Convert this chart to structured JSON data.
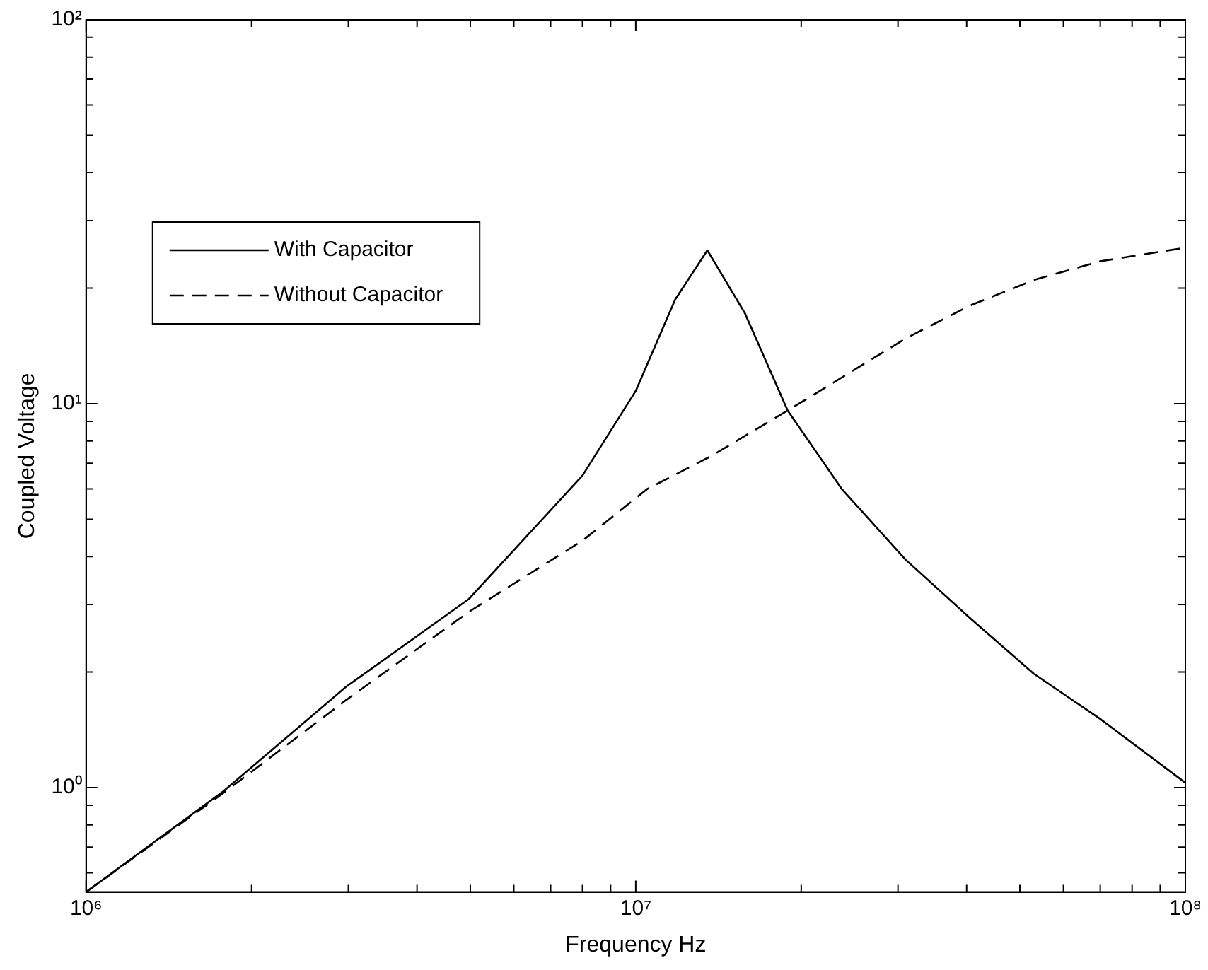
{
  "chart_data": {
    "type": "line",
    "xlabel": "Frequency Hz",
    "ylabel": "Coupled Voltage",
    "log": "xy",
    "grid": false,
    "legend": "top left",
    "marker": "none",
    "xlim": [
      1000000,
      100000000
    ],
    "xticks": [
      {
        "value": 1000000,
        "label": "10⁶"
      },
      {
        "value": 2000000,
        "label": null
      },
      {
        "value": 3000000,
        "label": null
      },
      {
        "value": 4000000,
        "label": null
      },
      {
        "value": 5000000,
        "label": null
      },
      {
        "value": 6000000,
        "label": null
      },
      {
        "value": 7000000,
        "label": null
      },
      {
        "value": 8000000,
        "label": null
      },
      {
        "value": 9000000,
        "label": null
      },
      {
        "value": 10000000,
        "label": "10⁷"
      },
      {
        "value": 20000000,
        "label": null
      },
      {
        "value": 30000000,
        "label": null
      },
      {
        "value": 40000000,
        "label": null
      },
      {
        "value": 50000000,
        "label": null
      },
      {
        "value": 60000000,
        "label": null
      },
      {
        "value": 70000000,
        "label": null
      },
      {
        "value": 80000000,
        "label": null
      },
      {
        "value": 90000000,
        "label": null
      },
      {
        "value": 100000000,
        "label": "10⁸"
      }
    ],
    "ylim": [
      0.535,
      100
    ],
    "yticks": [
      {
        "value": 0.6,
        "label": null
      },
      {
        "value": 0.7,
        "label": null
      },
      {
        "value": 0.8,
        "label": null
      },
      {
        "value": 0.9,
        "label": null
      },
      {
        "value": 1,
        "label": "10⁰"
      },
      {
        "value": 2,
        "label": null
      },
      {
        "value": 3,
        "label": null
      },
      {
        "value": 4,
        "label": null
      },
      {
        "value": 5,
        "label": null
      },
      {
        "value": 6,
        "label": null
      },
      {
        "value": 7,
        "label": null
      },
      {
        "value": 8,
        "label": null
      },
      {
        "value": 9,
        "label": null
      },
      {
        "value": 10,
        "label": "10¹"
      },
      {
        "value": 20,
        "label": null
      },
      {
        "value": 30,
        "label": null
      },
      {
        "value": 40,
        "label": null
      },
      {
        "value": 50,
        "label": null
      },
      {
        "value": 60,
        "label": null
      },
      {
        "value": 70,
        "label": null
      },
      {
        "value": 80,
        "label": null
      },
      {
        "value": 90,
        "label": null
      },
      {
        "value": 100,
        "label": "10²"
      }
    ],
    "series": [
      {
        "name": "With Capacitor",
        "color": "#000000",
        "line_style": "solid",
        "x": [
          1000000,
          1780000,
          2970000,
          4970000,
          8000000,
          10000000,
          11800000,
          13500000,
          15800000,
          18900000,
          23700000,
          31000000,
          40500000,
          53000000,
          70000000,
          100000000
        ],
        "values": [
          0.535,
          0.98,
          1.83,
          3.1,
          6.5,
          10.8,
          18.7,
          25.1,
          17.2,
          9.6,
          6.0,
          3.92,
          2.77,
          1.98,
          1.51,
          1.03
        ]
      },
      {
        "name": "Without Capacitor",
        "color": "#000000",
        "line_style": "dashed",
        "x": [
          1000000,
          1780000,
          2970000,
          4970000,
          8000000,
          10500000,
          13700000,
          18900000,
          23700000,
          31000000,
          40500000,
          53000000,
          70000000,
          100000000
        ],
        "values": [
          0.535,
          0.97,
          1.69,
          2.87,
          4.4,
          6.0,
          7.3,
          9.6,
          11.7,
          14.8,
          18.0,
          21.0,
          23.5,
          25.5
        ]
      }
    ]
  }
}
